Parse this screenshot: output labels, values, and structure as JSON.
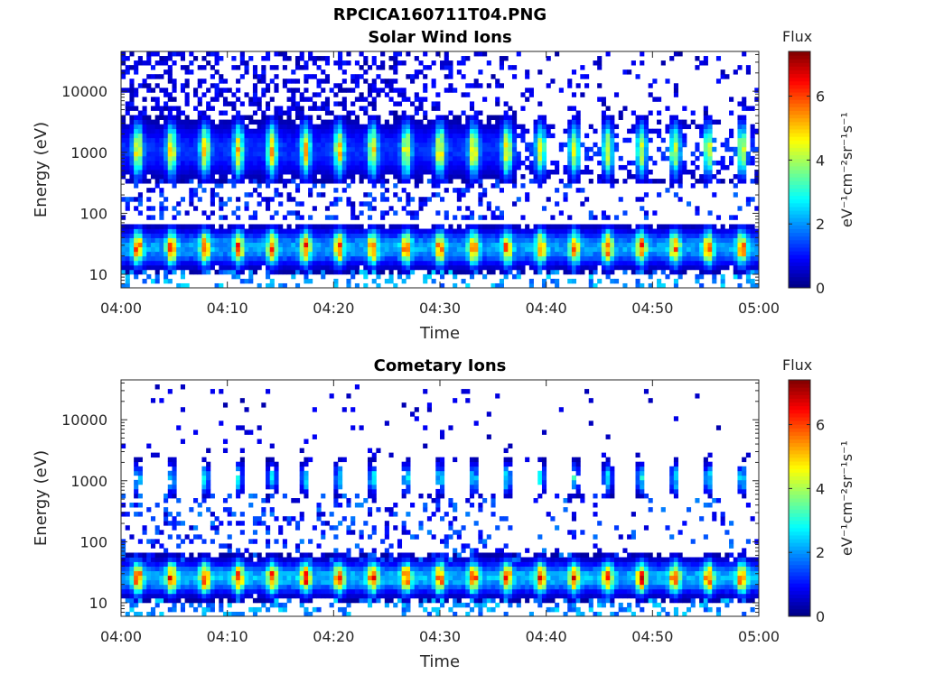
{
  "figure": {
    "title": "RPCICA160711T04.PNG"
  },
  "chart_data": [
    {
      "type": "heatmap",
      "title": "Solar Wind Ions",
      "xlabel": "Time",
      "ylabel": "Energy (eV)",
      "x_ticks": [
        "04:00",
        "04:10",
        "04:20",
        "04:30",
        "04:40",
        "04:50",
        "05:00"
      ],
      "xlim": [
        "04:00",
        "05:00"
      ],
      "y_scale": "log",
      "y_ticks": [
        {
          "value": 10,
          "label": "10"
        },
        {
          "value": 100,
          "label": "100"
        },
        {
          "value": 1000,
          "label": "1000"
        },
        {
          "value": 10000,
          "label": "10000"
        }
      ],
      "ylim": [
        6,
        45000
      ],
      "colorbar": {
        "title": "Flux",
        "label": "eV⁻¹cm⁻²sr⁻¹s⁻¹",
        "range": [
          0,
          7.4
        ],
        "ticks": [
          0,
          2,
          4,
          6
        ],
        "colormap": "jet"
      },
      "pulse_count": 19,
      "main_band_energy_eV": [
        350,
        3500
      ],
      "low_band_energy_eV": [
        15,
        50
      ],
      "peak_flux_main": 5.4,
      "peak_flux_low": 6.3
    },
    {
      "type": "heatmap",
      "title": "Cometary Ions",
      "xlabel": "Time",
      "ylabel": "Energy (eV)",
      "x_ticks": [
        "04:00",
        "04:10",
        "04:20",
        "04:30",
        "04:40",
        "04:50",
        "05:00"
      ],
      "xlim": [
        "04:00",
        "05:00"
      ],
      "y_scale": "log",
      "y_ticks": [
        {
          "value": 10,
          "label": "10"
        },
        {
          "value": 100,
          "label": "100"
        },
        {
          "value": 1000,
          "label": "1000"
        },
        {
          "value": 10000,
          "label": "10000"
        }
      ],
      "ylim": [
        6,
        45000
      ],
      "colorbar": {
        "title": "Flux",
        "label": "eV⁻¹cm⁻²sr⁻¹s⁻¹",
        "range": [
          0,
          7.4
        ],
        "ticks": [
          0,
          2,
          4,
          6
        ],
        "colormap": "jet"
      },
      "pulse_count": 19,
      "main_band_energy_eV": [
        600,
        2000
      ],
      "low_band_energy_eV": [
        15,
        45
      ],
      "peak_flux_main": 3.0,
      "peak_flux_low": 6.8
    }
  ]
}
